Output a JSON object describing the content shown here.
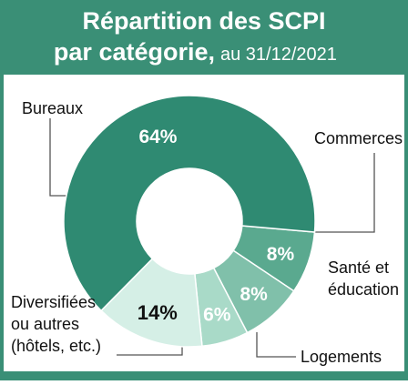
{
  "chart_data": {
    "type": "pie",
    "title": [
      "Répartition des SCPI",
      "par catégorie,"
    ],
    "subtitle": "au 31/12/2021",
    "categories": [
      "Commerces",
      "Santé et éducation",
      "Logements",
      "Diversifiées ou autres (hôtels, etc.)",
      "Bureaux"
    ],
    "values": [
      8,
      8,
      6,
      14,
      64
    ],
    "value_labels": [
      "8%",
      "8%",
      "6%",
      "14%",
      "64%"
    ],
    "colors": [
      "#5aa98f",
      "#80c0aa",
      "#a9dac8",
      "#d5efe6",
      "#2f8a72"
    ]
  }
}
